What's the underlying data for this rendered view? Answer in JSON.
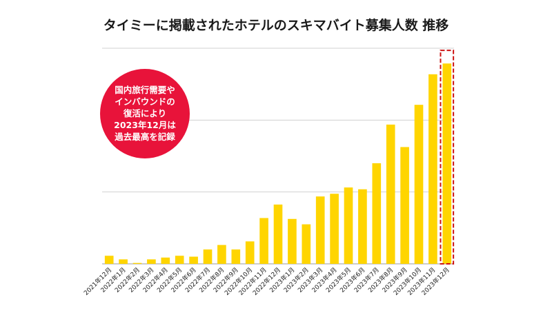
{
  "chart_data": {
    "type": "bar",
    "title": "タイミーに掲載されたホテルのスキマバイト募集人数 推移",
    "xlabel": "",
    "ylabel": "",
    "categories": [
      "2021年12月",
      "2022年1月",
      "2022年2月",
      "2022年3月",
      "2022年4月",
      "2022年5月",
      "2022年6月",
      "2022年7月",
      "2022年8月",
      "2022年9月",
      "2022年10月",
      "2022年11月",
      "2022年12月",
      "2023年1月",
      "2023年2月",
      "2023年3月",
      "2023年4月",
      "2023年5月",
      "2023年6月",
      "2023年7月",
      "2023年8月",
      "2023年9月",
      "2023年10月",
      "2023年11月",
      "2023年12月"
    ],
    "values": [
      4.5,
      2.5,
      0.5,
      2.5,
      3.5,
      4.5,
      4.0,
      8.0,
      10.5,
      8.0,
      12.5,
      25.5,
      33.0,
      25.0,
      22.0,
      37.5,
      39.0,
      42.5,
      41.5,
      56.0,
      77.5,
      65.0,
      88.5,
      105.5,
      111.5
    ],
    "ylim": [
      0,
      120
    ],
    "grid": true,
    "highlight_index": 24,
    "annotation": [
      "国内旅行需要や",
      "インバウンドの",
      "復活により",
      "2023年12月は",
      "過去最高を記録"
    ],
    "colors": {
      "bar": "#FFD500",
      "highlight_outline": "#CC1111",
      "callout": "#E8133A",
      "grid": "#D0D0D0"
    }
  }
}
